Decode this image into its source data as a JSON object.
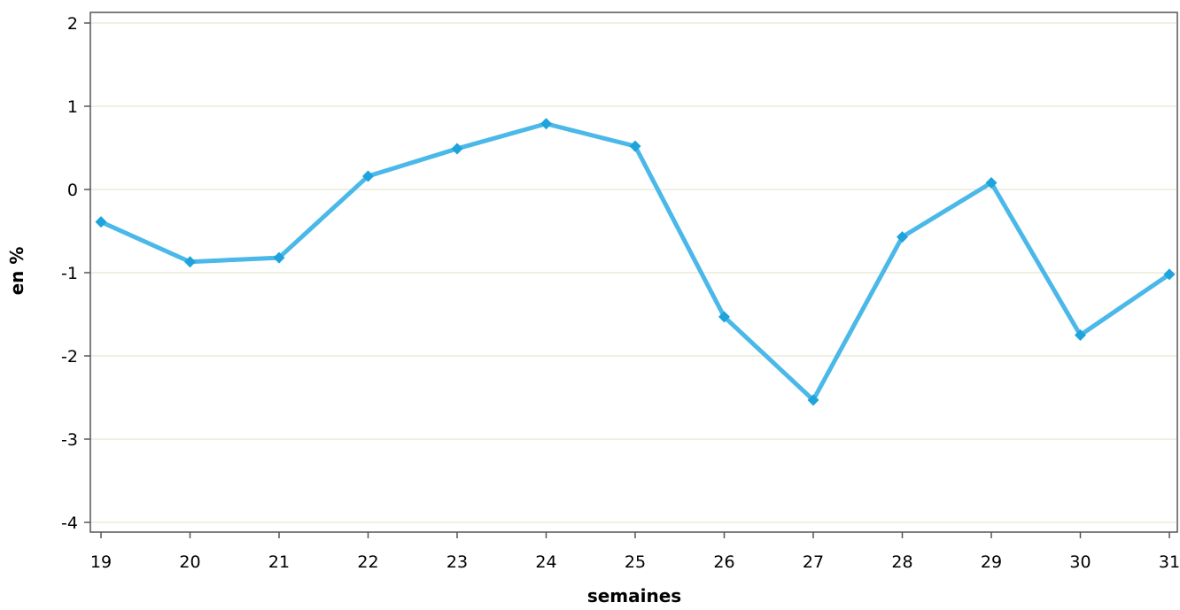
{
  "chart_data": {
    "type": "line",
    "title": "",
    "xlabel": "semaines",
    "ylabel": "en %",
    "x": [
      19,
      20,
      21,
      22,
      23,
      24,
      25,
      26,
      27,
      28,
      29,
      30,
      31
    ],
    "series": [
      {
        "values": [
          -0.39,
          -0.87,
          -0.82,
          0.16,
          0.49,
          0.79,
          0.52,
          -1.53,
          -2.53,
          -0.57,
          0.08,
          -1.75,
          -1.02
        ],
        "color": "#4ab8e8",
        "marker_color": "#1ea3dc",
        "marker": "diamond"
      }
    ],
    "xlim": [
      19,
      31
    ],
    "ylim": [
      -4,
      2
    ],
    "yticks": [
      "2",
      "1",
      "0",
      "-1",
      "-2",
      "-3",
      "-4"
    ],
    "xticks": [
      "19",
      "20",
      "21",
      "22",
      "23",
      "24",
      "25",
      "26",
      "27",
      "28",
      "29",
      "30",
      "31"
    ],
    "grid": "horizontal",
    "legend": "none",
    "gridline_color": "#ecebd8",
    "axis_color": "#555555"
  }
}
